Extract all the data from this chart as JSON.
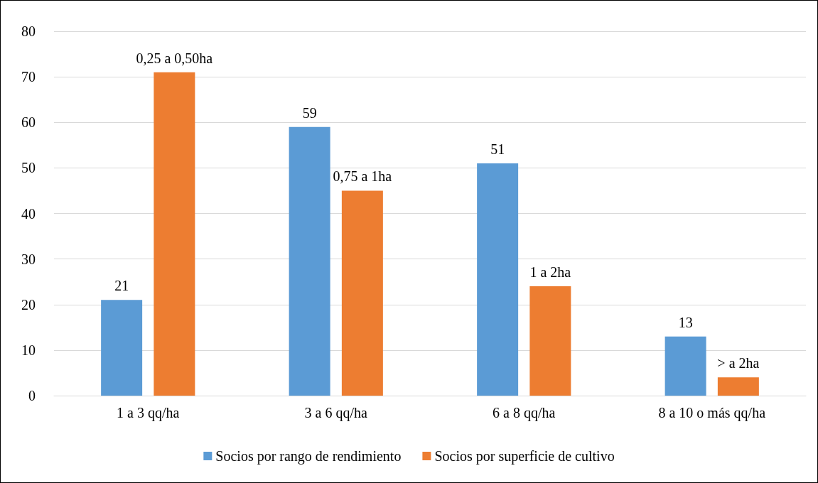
{
  "chart_data": {
    "type": "bar",
    "categories": [
      "1 a 3 qq/ha",
      "3 a 6 qq/ha",
      "6 a 8 qq/ha",
      "8 a 10 o más qq/ha"
    ],
    "series": [
      {
        "name": "Socios por rango de rendimiento",
        "color": "#5b9bd5",
        "values": [
          21,
          59,
          51,
          13
        ],
        "value_labels": [
          "21",
          "59",
          "51",
          "13"
        ]
      },
      {
        "name": "Socios por superficie de cultivo",
        "color": "#ed7d31",
        "values": [
          71,
          45,
          24,
          4
        ]
      }
    ],
    "annotations": [
      "0,25 a 0,50ha",
      "0,75 a 1ha",
      "1 a 2ha",
      "> a 2ha"
    ],
    "ylim": [
      0,
      80
    ],
    "yticks": [
      0,
      10,
      20,
      30,
      40,
      50,
      60,
      70,
      80
    ],
    "grid": "y",
    "legend": "bottom"
  }
}
